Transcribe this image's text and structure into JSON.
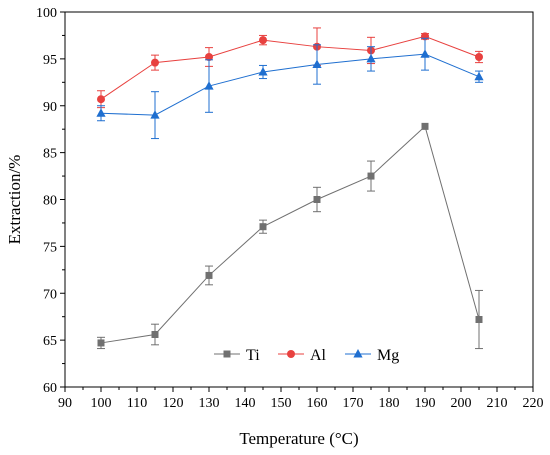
{
  "chart_data": {
    "type": "line",
    "title": "",
    "xlabel": "Temperature (°C)",
    "ylabel": "Extraction/%",
    "xlim": [
      90,
      220
    ],
    "ylim": [
      60,
      100
    ],
    "xticks": [
      90,
      100,
      110,
      120,
      130,
      140,
      150,
      160,
      170,
      180,
      190,
      200,
      210,
      220
    ],
    "yticks": [
      60,
      65,
      70,
      75,
      80,
      85,
      90,
      95,
      100
    ],
    "grid": false,
    "legend": {
      "placement": "bottom-center",
      "orientation": "horizontal"
    },
    "x": [
      100,
      115,
      130,
      145,
      160,
      175,
      190,
      205
    ],
    "series": [
      {
        "name": "Ti",
        "marker": "square",
        "color": "#707070",
        "values": [
          64.7,
          65.6,
          71.9,
          77.1,
          80.0,
          82.5,
          87.8,
          67.2
        ],
        "errors": [
          0.6,
          1.1,
          1.0,
          0.7,
          1.3,
          1.6,
          0.0,
          3.1
        ]
      },
      {
        "name": "Al",
        "marker": "circle",
        "color": "#e8413f",
        "values": [
          90.7,
          94.6,
          95.2,
          97.0,
          96.3,
          95.9,
          97.4,
          95.2
        ],
        "errors": [
          0.9,
          0.8,
          1.0,
          0.5,
          2.0,
          1.4,
          0.3,
          0.6
        ]
      },
      {
        "name": "Mg",
        "marker": "triangle",
        "color": "#1f6fd0",
        "values": [
          89.2,
          89.0,
          92.1,
          93.6,
          94.4,
          95.0,
          95.5,
          93.1
        ],
        "errors": [
          0.8,
          2.5,
          2.8,
          0.7,
          2.1,
          1.3,
          1.7,
          0.6
        ]
      }
    ]
  }
}
